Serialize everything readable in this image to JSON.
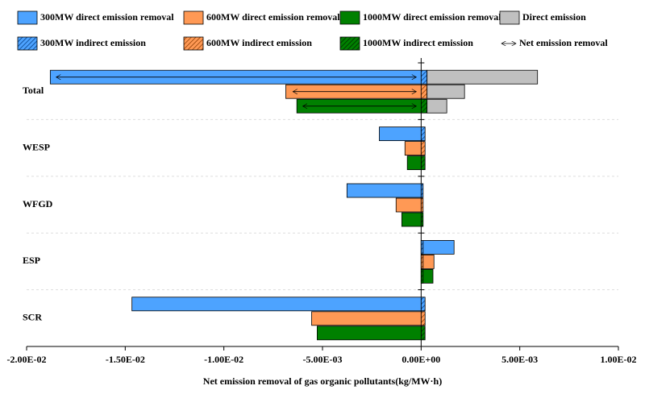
{
  "chart_data": {
    "type": "bar",
    "orientation": "horizontal",
    "xlabel": "Net emission removal of gas organic pollutants(kg/MW·h)",
    "categories": [
      "Total",
      "WESP",
      "WFGD",
      "ESP",
      "SCR"
    ],
    "xlim": [
      -0.02,
      0.01
    ],
    "xticks": [
      {
        "value": -0.02,
        "label": "-2.00E-02"
      },
      {
        "value": -0.015,
        "label": "-1.50E-02"
      },
      {
        "value": -0.01,
        "label": "-1.00E-02"
      },
      {
        "value": -0.005,
        "label": "-5.00E-03"
      },
      {
        "value": 0,
        "label": "0.00E+00"
      },
      {
        "value": 0.005,
        "label": "5.00E-03"
      },
      {
        "value": 0.01,
        "label": "1.00E-02"
      }
    ],
    "series": [
      {
        "name": "300MW direct emission removal",
        "color": "#4da3ff",
        "values": [
          -0.0188,
          -0.00212,
          -0.00376,
          0.00167,
          -0.01466
        ]
      },
      {
        "name": "600MW direct emission removal",
        "color": "#ff9955",
        "values": [
          -0.00686,
          -0.00082,
          -0.00127,
          0.00065,
          -0.00555
        ]
      },
      {
        "name": "1000MW direct emission removal",
        "color": "#008000",
        "values": [
          -0.0063,
          -0.0007,
          -0.00098,
          0.0006,
          -0.00527
        ]
      }
    ],
    "indirect_series": [
      {
        "name": "300MW indirect emission",
        "color": "#4da3ff",
        "values": [
          0.0003,
          0.0002,
          0.0001,
          0.0001,
          0.0002
        ]
      },
      {
        "name": "600MW indirect emission",
        "color": "#ff9955",
        "values": [
          0.0003,
          0.0002,
          0.0001,
          0.0001,
          0.0002
        ]
      },
      {
        "name": "1000MW indirect emission",
        "color": "#008000",
        "values": [
          0.0003,
          0.0002,
          0.0001,
          0.0001,
          0.0002
        ]
      }
    ],
    "direct_emission": {
      "name": "Direct emission",
      "color": "#c0c0c0",
      "values": [
        0.0056,
        0.0019,
        0.001
      ]
    },
    "net_emission_removal": {
      "name": "Net emission removal",
      "values": [
        -0.0185,
        -0.0065,
        -0.006
      ]
    }
  }
}
